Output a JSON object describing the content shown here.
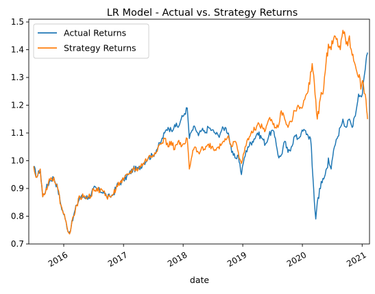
{
  "chart_data": {
    "type": "line",
    "title": "LR Model - Actual vs. Strategy Returns",
    "xlabel": "date",
    "ylabel": "",
    "x_ticks": [
      "2016",
      "2017",
      "2018",
      "2019",
      "2020",
      "2021"
    ],
    "y_ticks": [
      "0.7",
      "0.8",
      "0.9",
      "1.0",
      "1.1",
      "1.2",
      "1.3",
      "1.4",
      "1.5"
    ],
    "xlim": [
      "2015-06-01",
      "2021-02-15"
    ],
    "ylim": [
      0.7,
      1.51
    ],
    "legend_position": "top-left",
    "grid": false,
    "series": [
      {
        "name": "Actual Returns",
        "color": "#1f77b4",
        "points": [
          [
            "2015-07-01",
            0.98
          ],
          [
            "2015-07-20",
            0.94
          ],
          [
            "2015-08-10",
            0.97
          ],
          [
            "2015-08-25",
            0.87
          ],
          [
            "2015-09-15",
            0.9
          ],
          [
            "2015-10-10",
            0.93
          ],
          [
            "2015-11-01",
            0.94
          ],
          [
            "2015-11-25",
            0.9
          ],
          [
            "2015-12-15",
            0.84
          ],
          [
            "2016-01-10",
            0.79
          ],
          [
            "2016-02-01",
            0.74
          ],
          [
            "2016-02-15",
            0.76
          ],
          [
            "2016-03-01",
            0.8
          ],
          [
            "2016-03-20",
            0.84
          ],
          [
            "2016-04-10",
            0.87
          ],
          [
            "2016-05-01",
            0.87
          ],
          [
            "2016-06-01",
            0.87
          ],
          [
            "2016-06-15",
            0.87
          ],
          [
            "2016-07-01",
            0.9
          ],
          [
            "2016-07-20",
            0.9
          ],
          [
            "2016-08-10",
            0.89
          ],
          [
            "2016-09-01",
            0.89
          ],
          [
            "2016-09-20",
            0.87
          ],
          [
            "2016-10-10",
            0.87
          ],
          [
            "2016-11-01",
            0.88
          ],
          [
            "2016-11-20",
            0.91
          ],
          [
            "2016-12-10",
            0.92
          ],
          [
            "2017-01-01",
            0.93
          ],
          [
            "2017-02-01",
            0.95
          ],
          [
            "2017-03-01",
            0.97
          ],
          [
            "2017-04-01",
            0.97
          ],
          [
            "2017-05-01",
            0.99
          ],
          [
            "2017-06-01",
            1.01
          ],
          [
            "2017-07-01",
            1.02
          ],
          [
            "2017-08-01",
            1.05
          ],
          [
            "2017-08-20",
            1.07
          ],
          [
            "2017-09-10",
            1.1
          ],
          [
            "2017-10-01",
            1.12
          ],
          [
            "2017-10-20",
            1.11
          ],
          [
            "2017-11-10",
            1.13
          ],
          [
            "2017-12-01",
            1.12
          ],
          [
            "2017-12-20",
            1.15
          ],
          [
            "2018-01-10",
            1.17
          ],
          [
            "2018-01-26",
            1.19
          ],
          [
            "2018-02-08",
            1.08
          ],
          [
            "2018-02-25",
            1.11
          ],
          [
            "2018-03-15",
            1.12
          ],
          [
            "2018-04-05",
            1.09
          ],
          [
            "2018-04-25",
            1.11
          ],
          [
            "2018-05-15",
            1.1
          ],
          [
            "2018-06-05",
            1.12
          ],
          [
            "2018-06-25",
            1.11
          ],
          [
            "2018-07-15",
            1.1
          ],
          [
            "2018-08-05",
            1.09
          ],
          [
            "2018-08-25",
            1.11
          ],
          [
            "2018-09-15",
            1.12
          ],
          [
            "2018-10-05",
            1.1
          ],
          [
            "2018-10-25",
            1.03
          ],
          [
            "2018-11-15",
            1.01
          ],
          [
            "2018-12-05",
            1.02
          ],
          [
            "2018-12-24",
            0.95
          ],
          [
            "2019-01-10",
            1.01
          ],
          [
            "2019-02-01",
            1.05
          ],
          [
            "2019-03-01",
            1.07
          ],
          [
            "2019-04-01",
            1.1
          ],
          [
            "2019-05-01",
            1.08
          ],
          [
            "2019-05-20",
            1.06
          ],
          [
            "2019-06-10",
            1.09
          ],
          [
            "2019-07-01",
            1.11
          ],
          [
            "2019-07-20",
            1.08
          ],
          [
            "2019-08-10",
            1.01
          ],
          [
            "2019-08-25",
            1.02
          ],
          [
            "2019-09-15",
            1.07
          ],
          [
            "2019-10-05",
            1.03
          ],
          [
            "2019-10-25",
            1.05
          ],
          [
            "2019-11-15",
            1.09
          ],
          [
            "2019-12-05",
            1.08
          ],
          [
            "2019-12-25",
            1.1
          ],
          [
            "2020-01-15",
            1.11
          ],
          [
            "2020-02-05",
            1.09
          ],
          [
            "2020-02-20",
            1.08
          ],
          [
            "2020-03-01",
            0.98
          ],
          [
            "2020-03-10",
            0.9
          ],
          [
            "2020-03-23",
            0.79
          ],
          [
            "2020-04-01",
            0.85
          ],
          [
            "2020-04-15",
            0.9
          ],
          [
            "2020-05-01",
            0.92
          ],
          [
            "2020-05-20",
            0.95
          ],
          [
            "2020-06-08",
            1.01
          ],
          [
            "2020-06-25",
            0.97
          ],
          [
            "2020-07-15",
            1.05
          ],
          [
            "2020-08-01",
            1.08
          ],
          [
            "2020-08-20",
            1.12
          ],
          [
            "2020-09-05",
            1.15
          ],
          [
            "2020-09-25",
            1.12
          ],
          [
            "2020-10-15",
            1.15
          ],
          [
            "2020-11-01",
            1.12
          ],
          [
            "2020-11-10",
            1.15
          ],
          [
            "2020-11-25",
            1.18
          ],
          [
            "2020-12-10",
            1.24
          ],
          [
            "2020-12-28",
            1.23
          ],
          [
            "2021-01-08",
            1.28
          ],
          [
            "2021-01-20",
            1.33
          ],
          [
            "2021-01-29",
            1.38
          ],
          [
            "2021-02-03",
            1.39
          ]
        ]
      },
      {
        "name": "Strategy Returns",
        "color": "#ff7f0e",
        "points": [
          [
            "2015-07-01",
            0.98
          ],
          [
            "2015-07-20",
            0.94
          ],
          [
            "2015-08-10",
            0.97
          ],
          [
            "2015-08-25",
            0.87
          ],
          [
            "2015-09-15",
            0.9
          ],
          [
            "2015-10-10",
            0.93
          ],
          [
            "2015-11-01",
            0.94
          ],
          [
            "2015-11-25",
            0.9
          ],
          [
            "2015-12-15",
            0.84
          ],
          [
            "2016-01-10",
            0.79
          ],
          [
            "2016-02-01",
            0.74
          ],
          [
            "2016-02-15",
            0.76
          ],
          [
            "2016-03-01",
            0.8
          ],
          [
            "2016-03-20",
            0.84
          ],
          [
            "2016-04-10",
            0.87
          ],
          [
            "2016-05-01",
            0.87
          ],
          [
            "2016-06-01",
            0.87
          ],
          [
            "2016-06-15",
            0.87
          ],
          [
            "2016-07-01",
            0.9
          ],
          [
            "2016-07-20",
            0.9
          ],
          [
            "2016-08-10",
            0.89
          ],
          [
            "2016-09-01",
            0.89
          ],
          [
            "2016-09-20",
            0.87
          ],
          [
            "2016-10-10",
            0.87
          ],
          [
            "2016-11-01",
            0.88
          ],
          [
            "2016-11-20",
            0.91
          ],
          [
            "2016-12-10",
            0.92
          ],
          [
            "2017-01-01",
            0.93
          ],
          [
            "2017-02-01",
            0.95
          ],
          [
            "2017-03-01",
            0.97
          ],
          [
            "2017-04-01",
            0.97
          ],
          [
            "2017-05-01",
            0.99
          ],
          [
            "2017-06-01",
            1.01
          ],
          [
            "2017-07-01",
            1.02
          ],
          [
            "2017-08-01",
            1.05
          ],
          [
            "2017-08-20",
            1.06
          ],
          [
            "2017-09-10",
            1.08
          ],
          [
            "2017-10-01",
            1.05
          ],
          [
            "2017-10-20",
            1.07
          ],
          [
            "2017-11-10",
            1.04
          ],
          [
            "2017-12-01",
            1.07
          ],
          [
            "2017-12-20",
            1.05
          ],
          [
            "2018-01-10",
            1.06
          ],
          [
            "2018-01-26",
            1.08
          ],
          [
            "2018-02-08",
            0.97
          ],
          [
            "2018-02-25",
            1.02
          ],
          [
            "2018-03-15",
            1.05
          ],
          [
            "2018-04-05",
            1.03
          ],
          [
            "2018-04-25",
            1.05
          ],
          [
            "2018-05-15",
            1.04
          ],
          [
            "2018-06-05",
            1.06
          ],
          [
            "2018-06-25",
            1.05
          ],
          [
            "2018-07-15",
            1.04
          ],
          [
            "2018-08-05",
            1.05
          ],
          [
            "2018-08-25",
            1.06
          ],
          [
            "2018-09-15",
            1.08
          ],
          [
            "2018-10-05",
            1.09
          ],
          [
            "2018-10-25",
            1.05
          ],
          [
            "2018-11-15",
            1.07
          ],
          [
            "2018-12-05",
            1.03
          ],
          [
            "2018-12-24",
            0.99
          ],
          [
            "2019-01-10",
            1.03
          ],
          [
            "2019-02-01",
            1.08
          ],
          [
            "2019-03-01",
            1.1
          ],
          [
            "2019-04-01",
            1.13
          ],
          [
            "2019-05-01",
            1.12
          ],
          [
            "2019-05-20",
            1.11
          ],
          [
            "2019-06-10",
            1.15
          ],
          [
            "2019-07-01",
            1.14
          ],
          [
            "2019-07-20",
            1.12
          ],
          [
            "2019-08-10",
            1.13
          ],
          [
            "2019-08-25",
            1.18
          ],
          [
            "2019-09-15",
            1.15
          ],
          [
            "2019-10-05",
            1.12
          ],
          [
            "2019-10-25",
            1.14
          ],
          [
            "2019-11-15",
            1.18
          ],
          [
            "2019-12-05",
            1.2
          ],
          [
            "2019-12-25",
            1.19
          ],
          [
            "2020-01-15",
            1.22
          ],
          [
            "2020-02-05",
            1.25
          ],
          [
            "2020-02-20",
            1.32
          ],
          [
            "2020-03-01",
            1.35
          ],
          [
            "2020-03-10",
            1.31
          ],
          [
            "2020-03-23",
            1.22
          ],
          [
            "2020-04-01",
            1.15
          ],
          [
            "2020-04-15",
            1.21
          ],
          [
            "2020-05-01",
            1.24
          ],
          [
            "2020-05-20",
            1.32
          ],
          [
            "2020-06-08",
            1.42
          ],
          [
            "2020-06-25",
            1.4
          ],
          [
            "2020-07-15",
            1.45
          ],
          [
            "2020-08-01",
            1.44
          ],
          [
            "2020-08-20",
            1.4
          ],
          [
            "2020-09-05",
            1.47
          ],
          [
            "2020-09-25",
            1.42
          ],
          [
            "2020-10-15",
            1.45
          ],
          [
            "2020-11-01",
            1.38
          ],
          [
            "2020-11-10",
            1.36
          ],
          [
            "2020-11-25",
            1.33
          ],
          [
            "2020-12-10",
            1.3
          ],
          [
            "2020-12-28",
            1.27
          ],
          [
            "2021-01-08",
            1.28
          ],
          [
            "2021-01-20",
            1.24
          ],
          [
            "2021-01-29",
            1.18
          ],
          [
            "2021-02-03",
            1.15
          ]
        ]
      }
    ]
  }
}
